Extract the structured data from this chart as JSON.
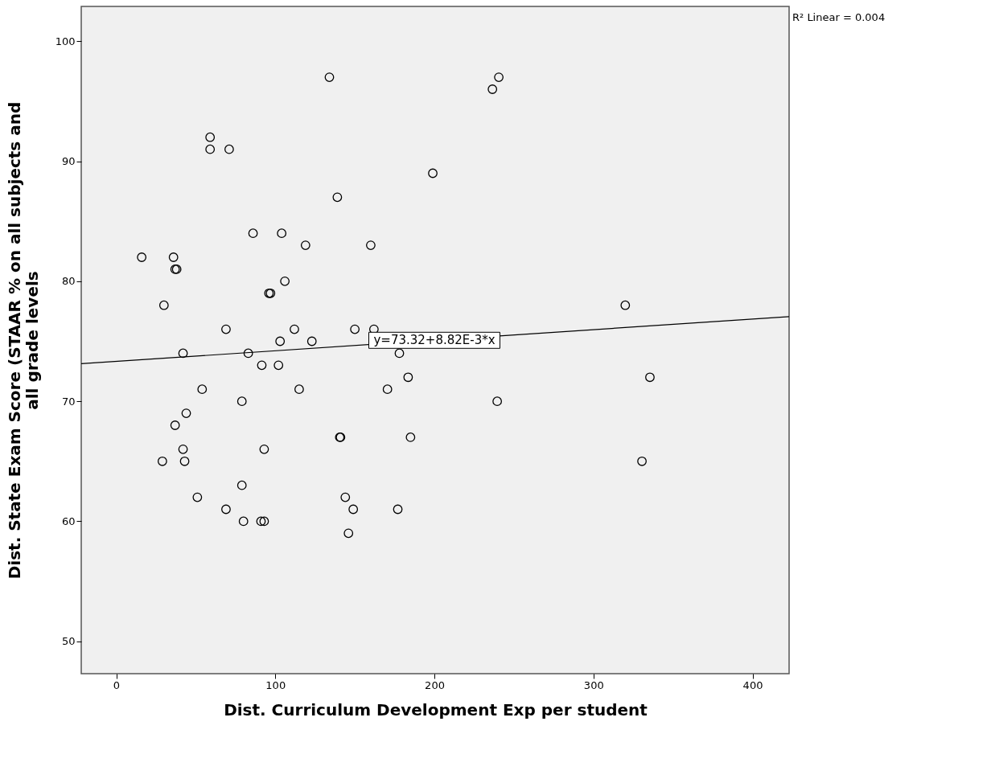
{
  "chart_data": {
    "type": "scatter",
    "xlabel": "Dist. Curriculum Development Exp per student",
    "ylabel": "Dist. State Exam Score (STAAR % on all subjects and\nall grade levels",
    "xlim": [
      -22,
      423
    ],
    "ylim": [
      47.3,
      102.9
    ],
    "xticks": [
      0,
      100,
      200,
      300,
      400
    ],
    "yticks": [
      50,
      60,
      70,
      80,
      90,
      100
    ],
    "grid": false,
    "annotations": [
      {
        "text": "y=73.32+8.82E-3*x",
        "x": 200,
        "y": 75.08
      },
      "R² Linear = 0.004"
    ],
    "series": [
      {
        "marker": "circle",
        "color": "#000000",
        "x": [
          134,
          236.5,
          240.5,
          59,
          59,
          71,
          199,
          139,
          86,
          104,
          119,
          160,
          16,
          36,
          37,
          38,
          106,
          96,
          97,
          30,
          320,
          69,
          112,
          150,
          162,
          103,
          123,
          83,
          42,
          178,
          91.5,
          102,
          54,
          115,
          170.5,
          183.5,
          79,
          239.5,
          335.5,
          44,
          37,
          42,
          93,
          140.5,
          141,
          185,
          29,
          43,
          330.5,
          79,
          51,
          144,
          69,
          149,
          177,
          80,
          91,
          93,
          146
        ],
        "values": [
          97,
          96,
          97,
          92,
          91,
          91,
          89,
          87,
          84,
          84,
          83,
          83,
          82,
          82,
          81,
          81,
          80,
          79,
          79,
          78,
          78,
          76,
          76,
          76,
          76,
          75,
          75,
          74,
          74,
          74,
          73,
          73,
          71,
          71,
          71,
          72,
          70,
          70,
          72,
          69,
          68,
          66,
          66,
          67,
          67,
          67,
          65,
          65,
          65,
          63,
          62,
          62,
          61,
          61,
          61,
          60,
          60,
          60,
          59
        ]
      },
      {
        "type": "line",
        "marker": "none",
        "color": "#000000",
        "x": [
          -22,
          423
        ],
        "values": [
          73.13,
          77.05
        ]
      }
    ]
  }
}
